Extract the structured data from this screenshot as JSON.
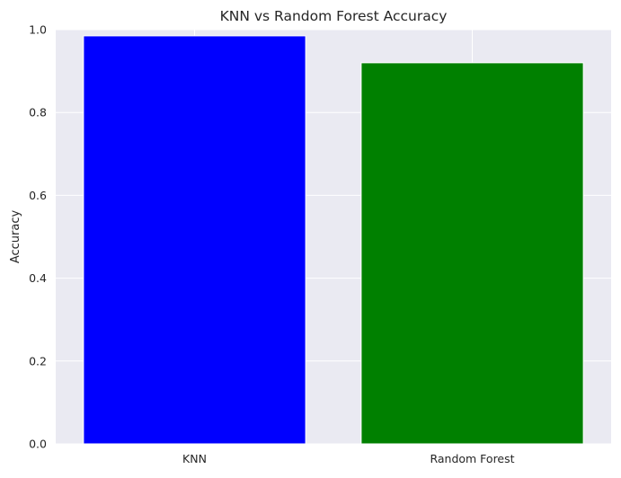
{
  "chart_data": {
    "type": "bar",
    "title": "KNN vs Random Forest Accuracy",
    "xlabel": "",
    "ylabel": "Accuracy",
    "categories": [
      "KNN",
      "Random Forest"
    ],
    "values": [
      0.985,
      0.92
    ],
    "colors": [
      "#0000ff",
      "#008000"
    ],
    "ylim": [
      0,
      1.0
    ],
    "yticks": [
      "0.0",
      "0.2",
      "0.4",
      "0.6",
      "0.8",
      "1.0"
    ],
    "grid": true,
    "style": {
      "plot_background": "#eaeaf2",
      "grid_color": "#ffffff"
    }
  }
}
